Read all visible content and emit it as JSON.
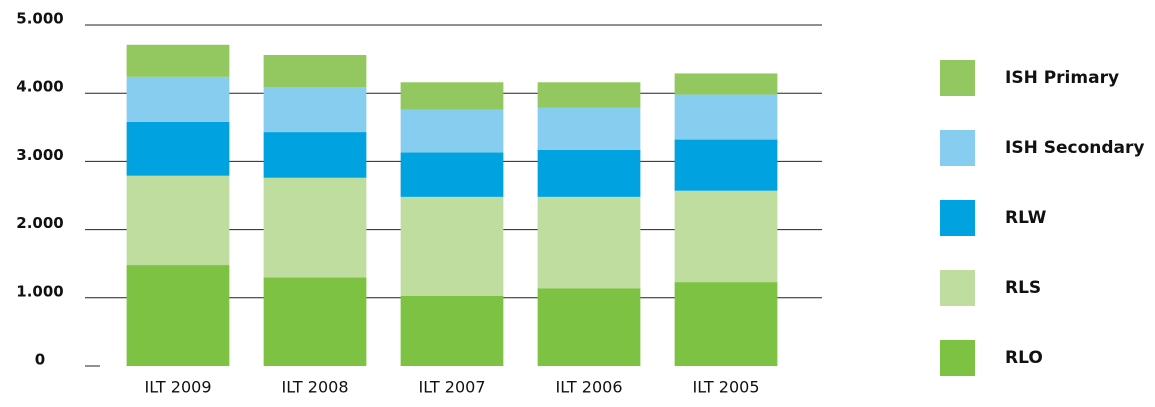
{
  "chart_data": {
    "type": "bar",
    "stacked": true,
    "categories": [
      "ILT 2009",
      "ILT 2008",
      "ILT 2007",
      "ILT 2006",
      "ILT 2005"
    ],
    "series": [
      {
        "name": "RLO",
        "color": "#7dc242",
        "values": [
          1480,
          1300,
          1030,
          1140,
          1230
        ]
      },
      {
        "name": "RLS",
        "color": "#bedd9f",
        "values": [
          1310,
          1460,
          1450,
          1340,
          1340
        ]
      },
      {
        "name": "RLW",
        "color": "#00a3e0",
        "values": [
          790,
          670,
          650,
          690,
          750
        ]
      },
      {
        "name": "ISH Secondary",
        "color": "#87cdf0",
        "values": [
          660,
          660,
          630,
          620,
          660
        ]
      },
      {
        "name": "ISH Primary",
        "color": "#92c85f",
        "values": [
          470,
          470,
          400,
          370,
          310
        ]
      }
    ],
    "ylim": [
      0,
      5000
    ],
    "yticks": [
      0,
      {
        "value": 1000,
        "label": "1.000"
      },
      {
        "value": 2000,
        "label": "2.000"
      },
      {
        "value": 3000,
        "label": "3.000"
      },
      {
        "value": 4000,
        "label": "4.000"
      },
      {
        "value": 5000,
        "label": "5.000"
      }
    ],
    "grid": true,
    "legend": "right"
  }
}
